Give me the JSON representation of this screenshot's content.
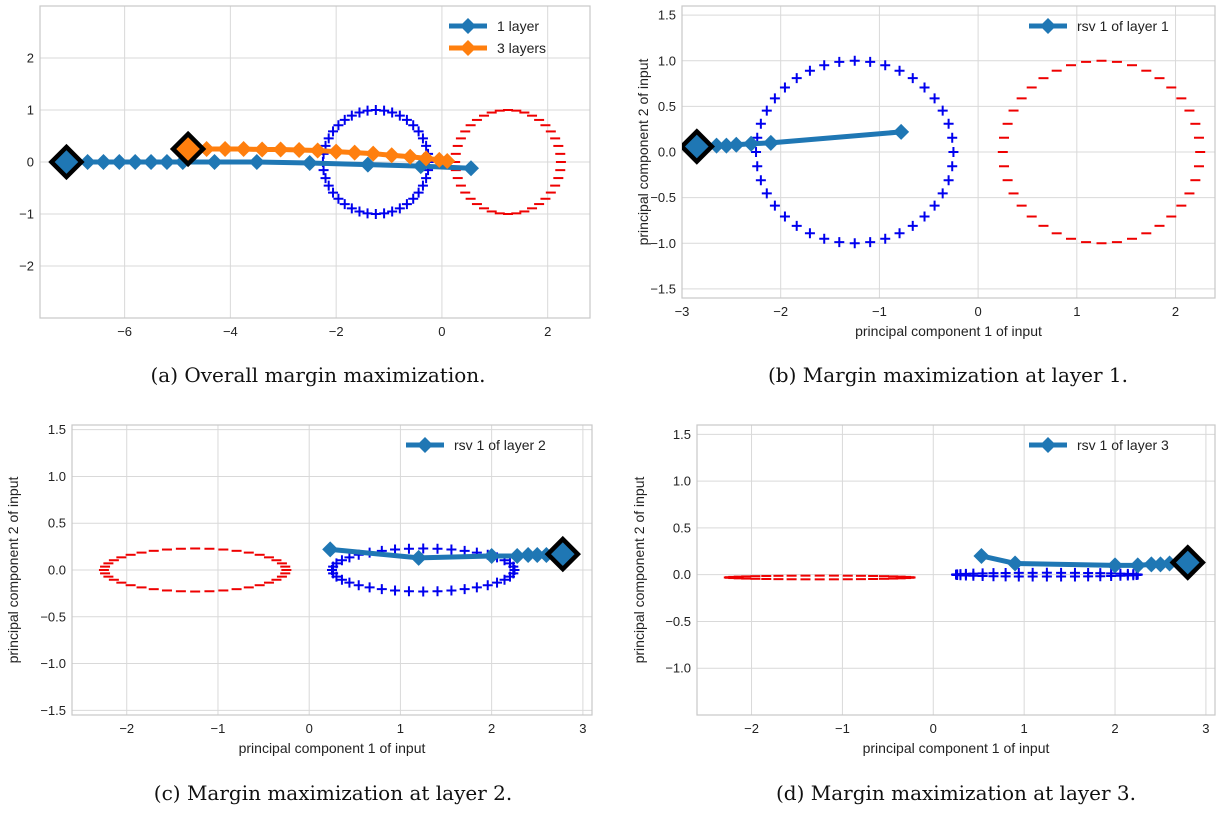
{
  "colors": {
    "grid": "#d9d9d9",
    "frame": "#c8c8c8",
    "series_blue": "#1f77b4",
    "series_orange": "#ff7f0e",
    "plus_marker": "#0000ee",
    "minus_marker": "#ee0000",
    "highlight_outline": "#000000"
  },
  "chart_data": [
    {
      "id": "a",
      "type": "line",
      "caption": "(a) Overall margin maximization.",
      "xlabel": "",
      "ylabel": "",
      "xlim": [
        -7.6,
        2.8
      ],
      "ylim": [
        -3.0,
        3.0
      ],
      "xticks": [
        -6,
        -4,
        -2,
        0,
        2
      ],
      "yticks": [
        -2,
        -1,
        0,
        1,
        2
      ],
      "tick_labels_x": [
        "−6",
        "−4",
        "−2",
        "0",
        "2"
      ],
      "tick_labels_y": [
        "−2",
        "−1",
        "0",
        "1",
        "2"
      ],
      "grid": true,
      "legend": "top-right",
      "series": [
        {
          "name": "1 layer",
          "color": "#1f77b4",
          "points": [
            [
              -7.1,
              0.0
            ],
            [
              -6.7,
              0.0
            ],
            [
              -6.4,
              0.0
            ],
            [
              -6.1,
              0.0
            ],
            [
              -5.8,
              0.0
            ],
            [
              -5.5,
              0.0
            ],
            [
              -5.2,
              0.0
            ],
            [
              -4.9,
              0.0
            ],
            [
              -4.3,
              0.0
            ],
            [
              -3.5,
              0.0
            ],
            [
              -2.5,
              -0.02
            ],
            [
              -1.4,
              -0.05
            ],
            [
              -0.4,
              -0.08
            ],
            [
              0.55,
              -0.12
            ]
          ],
          "highlight_index": 0
        },
        {
          "name": "3 layers",
          "color": "#ff7f0e",
          "points": [
            [
              -4.8,
              0.25
            ],
            [
              -4.45,
              0.25
            ],
            [
              -4.1,
              0.25
            ],
            [
              -3.75,
              0.25
            ],
            [
              -3.4,
              0.24
            ],
            [
              -3.05,
              0.24
            ],
            [
              -2.7,
              0.23
            ],
            [
              -2.35,
              0.22
            ],
            [
              -2.0,
              0.2
            ],
            [
              -1.65,
              0.18
            ],
            [
              -1.3,
              0.16
            ],
            [
              -0.95,
              0.13
            ],
            [
              -0.6,
              0.1
            ],
            [
              -0.3,
              0.07
            ],
            [
              -0.05,
              0.04
            ],
            [
              0.1,
              0.02
            ]
          ],
          "highlight_index": 0
        }
      ],
      "class_plus": {
        "marker": "+",
        "cx": -1.25,
        "cy": 0.0,
        "rx": 1.0,
        "ry": 1.0,
        "n": 40
      },
      "class_minus": {
        "marker": "_",
        "cx": 1.25,
        "cy": 0.0,
        "rx": 1.0,
        "ry": 1.0,
        "n": 40
      }
    },
    {
      "id": "b",
      "type": "line",
      "caption": "(b) Margin maximization at layer 1.",
      "xlabel": "principal component 1 of input",
      "ylabel": "principal component 2 of input",
      "xlim": [
        -3.0,
        2.4
      ],
      "ylim": [
        -1.6,
        1.6
      ],
      "xticks": [
        -3,
        -2,
        -1,
        0,
        1,
        2
      ],
      "yticks": [
        -1.5,
        -1.0,
        -0.5,
        0.0,
        0.5,
        1.0,
        1.5
      ],
      "tick_labels_x": [
        "−3",
        "−2",
        "−1",
        "0",
        "1",
        "2"
      ],
      "tick_labels_y": [
        "−1.5",
        "−1.0",
        "−0.5",
        "0.0",
        "0.5",
        "1.0",
        "1.5"
      ],
      "grid": true,
      "legend": "top-right",
      "series": [
        {
          "name": "rsv 1 of layer 1",
          "color": "#1f77b4",
          "points": [
            [
              -2.85,
              0.06
            ],
            [
              -2.75,
              0.06
            ],
            [
              -2.65,
              0.07
            ],
            [
              -2.55,
              0.07
            ],
            [
              -2.45,
              0.08
            ],
            [
              -2.3,
              0.09
            ],
            [
              -2.1,
              0.1
            ],
            [
              -0.78,
              0.22
            ]
          ],
          "highlight_index": 0
        }
      ],
      "class_plus": {
        "marker": "+",
        "cx": -1.25,
        "cy": 0.0,
        "rx": 1.0,
        "ry": 1.0,
        "n": 40
      },
      "class_minus": {
        "marker": "_",
        "cx": 1.25,
        "cy": 0.0,
        "rx": 1.0,
        "ry": 1.0,
        "n": 40
      }
    },
    {
      "id": "c",
      "type": "line",
      "caption": "(c) Margin maximization at layer 2.",
      "xlabel": "principal component 1 of input",
      "ylabel": "principal component 2 of input",
      "xlim": [
        -2.6,
        3.1
      ],
      "ylim": [
        -1.55,
        1.55
      ],
      "xticks": [
        -2,
        -1,
        0,
        1,
        2,
        3
      ],
      "yticks": [
        -1.5,
        -1.0,
        -0.5,
        0.0,
        0.5,
        1.0,
        1.5
      ],
      "tick_labels_x": [
        "−2",
        "−1",
        "0",
        "1",
        "2",
        "3"
      ],
      "tick_labels_y": [
        "−1.5",
        "−1.0",
        "−0.5",
        "0.0",
        "0.5",
        "1.0",
        "1.5"
      ],
      "grid": true,
      "legend": "top-right",
      "series": [
        {
          "name": "rsv 1 of layer 2",
          "color": "#1f77b4",
          "points": [
            [
              2.78,
              0.17
            ],
            [
              2.7,
              0.17
            ],
            [
              2.6,
              0.16
            ],
            [
              2.5,
              0.16
            ],
            [
              2.4,
              0.16
            ],
            [
              2.28,
              0.15
            ],
            [
              2.0,
              0.15
            ],
            [
              1.2,
              0.13
            ],
            [
              0.23,
              0.22
            ]
          ],
          "highlight_index": 0
        }
      ],
      "class_plus": {
        "marker": "+",
        "cx": 1.25,
        "cy": 0.0,
        "rx": 1.0,
        "ry": 0.23,
        "n": 40
      },
      "class_minus": {
        "marker": "_",
        "cx": -1.25,
        "cy": 0.0,
        "rx": 1.0,
        "ry": 0.23,
        "n": 40
      }
    },
    {
      "id": "d",
      "type": "line",
      "caption": "(d) Margin maximization at layer 3.",
      "xlabel": "principal component 1 of input",
      "ylabel": "principal component 2 of input",
      "xlim": [
        -2.6,
        3.1
      ],
      "ylim": [
        -1.5,
        1.6
      ],
      "xticks": [
        -2,
        -1,
        0,
        1,
        2,
        3
      ],
      "yticks": [
        -1.0,
        -0.5,
        0.0,
        0.5,
        1.0,
        1.5
      ],
      "tick_labels_x": [
        "−2",
        "−1",
        "0",
        "1",
        "2",
        "3"
      ],
      "tick_labels_y": [
        "−1.0",
        "−0.5",
        "0.0",
        "0.5",
        "1.0",
        "1.5"
      ],
      "grid": true,
      "legend": "top-right",
      "series": [
        {
          "name": "rsv 1 of layer 3",
          "color": "#1f77b4",
          "points": [
            [
              2.8,
              0.13
            ],
            [
              2.7,
              0.12
            ],
            [
              2.6,
              0.12
            ],
            [
              2.5,
              0.11
            ],
            [
              2.4,
              0.11
            ],
            [
              2.25,
              0.1
            ],
            [
              2.0,
              0.1
            ],
            [
              0.9,
              0.12
            ],
            [
              0.53,
              0.2
            ]
          ],
          "highlight_index": 0
        }
      ],
      "class_plus": {
        "marker": "+",
        "cx": 1.25,
        "cy": 0.0,
        "rx": 1.0,
        "ry": 0.02,
        "n": 40
      },
      "class_minus": {
        "marker": "_",
        "cx": -1.25,
        "cy": -0.03,
        "rx": 1.0,
        "ry": 0.02,
        "n": 40
      }
    }
  ]
}
